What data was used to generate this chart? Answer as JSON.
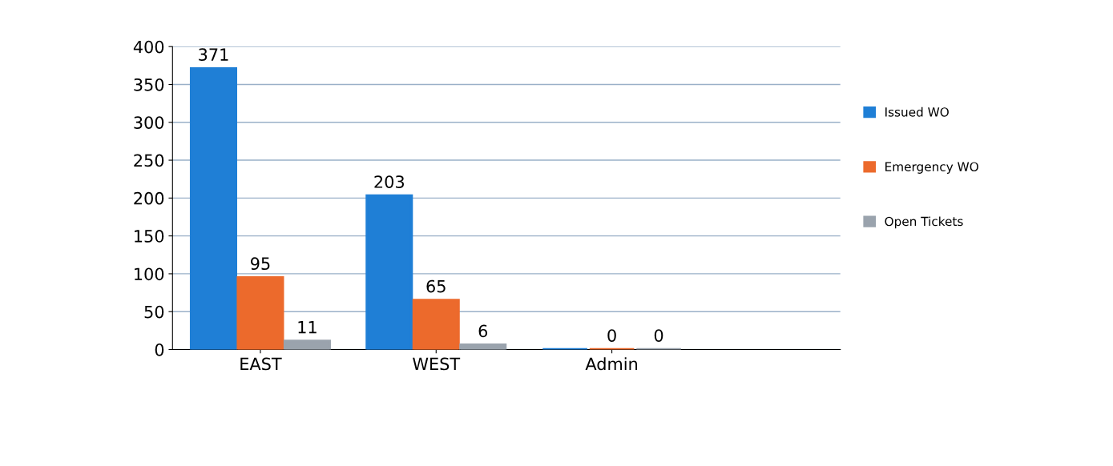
{
  "chart_data": {
    "type": "bar",
    "categories": [
      "EAST",
      "WEST",
      "Admin"
    ],
    "series": [
      {
        "name": "Issued WO",
        "color": "#1f7fd6",
        "values": [
          371,
          203,
          0
        ],
        "value_labels": [
          "371",
          "203",
          null
        ]
      },
      {
        "name": "Emergency WO",
        "color": "#ec6a2c",
        "values": [
          95,
          65,
          0
        ],
        "value_labels": [
          "95",
          "65",
          "0"
        ]
      },
      {
        "name": "Open Tickets",
        "color": "#9aa3ad",
        "values": [
          11,
          6,
          0
        ],
        "value_labels": [
          "11",
          "6",
          "0"
        ]
      }
    ],
    "ylim": [
      0,
      400
    ],
    "yticks": [
      0,
      50,
      100,
      150,
      200,
      250,
      300,
      350,
      400
    ],
    "grid": "y",
    "legend": "right"
  }
}
